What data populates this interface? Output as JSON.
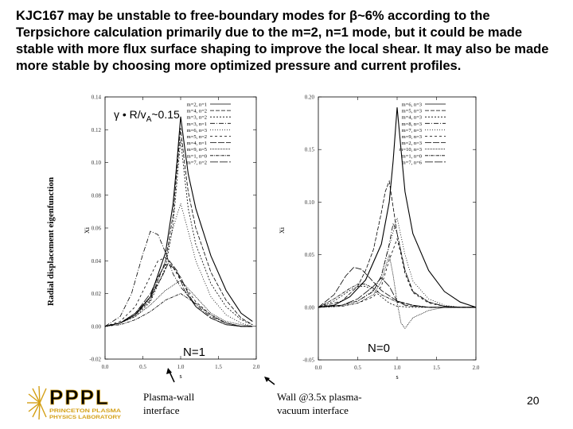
{
  "slide": {
    "title": "KJC167 may be unstable to free-boundary modes for β~6% according to the Terpsichore calculation primarily due to the m=2, n=1 mode, but it could be made stable with more flux surface shaping to improve the local shear. It may also be made more stable by choosing more optimized pressure and current profiles.",
    "ylabel": "Radial displacement eigenfunction",
    "growth_rate_label": "γ • R/vA~0.15",
    "n1_label": "N=1",
    "n0_label": "N=0",
    "plasma_wall_label": "Plasma-wall interface",
    "wall_label": "Wall @3.5x plasma-vacuum interface",
    "page_number": "20",
    "logo_text": "PPPL",
    "logo_subtext": "PRINCETON PLASMA PHYSICS LABORATORY"
  },
  "chart_data": [
    {
      "type": "line",
      "panel": "N=1",
      "xlabel": "s",
      "ylabel": "Xi",
      "xlim": [
        0,
        2
      ],
      "ylim": [
        -0.02,
        0.14
      ],
      "xticks": [
        "0.0",
        "0.5",
        "1.0",
        "1.5",
        "2.0"
      ],
      "yticks": [
        "-0.02",
        "0.00",
        "0.02",
        "0.04",
        "0.06",
        "0.08",
        "0.10",
        "0.12",
        "0.14"
      ],
      "legend": [
        "m=2, n=1",
        "m=4, n=2",
        "m=3, n=2",
        "m=3, n=1",
        "m=6, n=3",
        "m=5, n=2",
        "m=4, n=1",
        "m=9, n=5",
        "m=1, n=0",
        "m=7, n=2"
      ],
      "series": [
        {
          "name": "m=2, n=1",
          "x": [
            0,
            0.2,
            0.4,
            0.6,
            0.8,
            0.9,
            0.95,
            1.0,
            1.05,
            1.1,
            1.2,
            1.4,
            1.6,
            1.8,
            1.95
          ],
          "values": [
            0,
            0.002,
            0.007,
            0.018,
            0.045,
            0.075,
            0.1,
            0.128,
            0.11,
            0.093,
            0.072,
            0.043,
            0.022,
            0.008,
            0.003
          ]
        },
        {
          "name": "m=4, n=2",
          "x": [
            0,
            0.2,
            0.4,
            0.6,
            0.8,
            0.9,
            0.95,
            1.0,
            1.05,
            1.1,
            1.2,
            1.4,
            1.6,
            1.8,
            1.95
          ],
          "values": [
            0,
            0.002,
            0.007,
            0.016,
            0.04,
            0.068,
            0.095,
            0.121,
            0.1,
            0.082,
            0.06,
            0.033,
            0.016,
            0.005,
            0.001
          ]
        },
        {
          "name": "m=3, n=2",
          "x": [
            0,
            0.2,
            0.4,
            0.6,
            0.8,
            0.9,
            0.95,
            1.0,
            1.05,
            1.1,
            1.2,
            1.4,
            1.6,
            1.8,
            1.95
          ],
          "values": [
            0,
            0.002,
            0.006,
            0.015,
            0.036,
            0.062,
            0.088,
            0.114,
            0.092,
            0.072,
            0.05,
            0.026,
            0.012,
            0.004,
            0.001
          ]
        },
        {
          "name": "m=3, n=1",
          "x": [
            0,
            0.2,
            0.35,
            0.5,
            0.6,
            0.7,
            0.8,
            0.9,
            1.0,
            1.2,
            1.4,
            1.6,
            1.8,
            1.95
          ],
          "values": [
            0,
            0.006,
            0.02,
            0.044,
            0.058,
            0.056,
            0.045,
            0.032,
            0.024,
            0.013,
            0.006,
            0.002,
            0,
            0
          ]
        },
        {
          "name": "m=6, n=3",
          "x": [
            0,
            0.2,
            0.4,
            0.6,
            0.8,
            0.9,
            1.0,
            1.1,
            1.2,
            1.4,
            1.6,
            1.8,
            1.95
          ],
          "values": [
            0,
            0.002,
            0.007,
            0.017,
            0.04,
            0.06,
            0.075,
            0.058,
            0.04,
            0.018,
            0.007,
            0.002,
            0
          ]
        },
        {
          "name": "m=5, n=2",
          "x": [
            0,
            0.2,
            0.4,
            0.55,
            0.7,
            0.8,
            0.9,
            1.0,
            1.2,
            1.4,
            1.6,
            1.8,
            1.95
          ],
          "values": [
            0,
            0.003,
            0.012,
            0.026,
            0.04,
            0.042,
            0.036,
            0.028,
            0.015,
            0.007,
            0.002,
            0,
            0
          ]
        },
        {
          "name": "m=4, n=1",
          "x": [
            0,
            0.2,
            0.4,
            0.6,
            0.75,
            0.85,
            0.95,
            1.05,
            1.2,
            1.4,
            1.6,
            1.8,
            1.95
          ],
          "values": [
            0,
            0.002,
            0.008,
            0.018,
            0.03,
            0.04,
            0.034,
            0.022,
            0.012,
            0.005,
            0.001,
            0,
            0
          ]
        },
        {
          "name": "m=9, n=5",
          "x": [
            0,
            0.2,
            0.4,
            0.6,
            0.8,
            1.0,
            1.2,
            1.4,
            1.6,
            1.8,
            1.95
          ],
          "values": [
            0,
            0.002,
            0.006,
            0.013,
            0.022,
            0.028,
            0.018,
            0.008,
            0.003,
            0.001,
            0
          ]
        },
        {
          "name": "m=1, n=0",
          "x": [
            0,
            0.2,
            0.4,
            0.6,
            0.8,
            1.0,
            1.2,
            1.4,
            1.6,
            1.8,
            1.95
          ],
          "values": [
            0,
            0.001,
            0.004,
            0.009,
            0.016,
            0.02,
            0.014,
            0.007,
            0.002,
            0,
            0
          ]
        },
        {
          "name": "m=7, n=2",
          "x": [
            0,
            0.2,
            0.4,
            0.6,
            0.7,
            0.8,
            0.9,
            1.0,
            1.1,
            1.2,
            1.4,
            1.6,
            1.8,
            1.95
          ],
          "values": [
            0,
            0.002,
            0.008,
            0.02,
            0.03,
            0.038,
            0.036,
            0.03,
            0.02,
            0.012,
            0.005,
            0.001,
            0,
            0
          ]
        }
      ]
    },
    {
      "type": "line",
      "panel": "N=0",
      "xlabel": "s",
      "ylabel": "Xi",
      "xlim": [
        0,
        2
      ],
      "ylim": [
        -0.05,
        0.2
      ],
      "xticks": [
        "0.0",
        "0.5",
        "1.0",
        "1.5",
        "2.0"
      ],
      "yticks": [
        "-0.05",
        "0.00",
        "0.05",
        "0.10",
        "0.15",
        "0.20"
      ],
      "legend": [
        "m=6, n=3",
        "m=5, n=3",
        "m=4, n=3",
        "m=8, n=3",
        "m=7, n=3",
        "m=9, n=3",
        "m=2, n=3",
        "m=10, n=3",
        "m=1, n=0",
        "m=7, n=6"
      ],
      "series": [
        {
          "name": "m=6, n=3",
          "x": [
            0,
            0.2,
            0.4,
            0.6,
            0.8,
            0.9,
            0.95,
            1.0,
            1.05,
            1.1,
            1.2,
            1.4,
            1.6,
            1.8,
            2.0
          ],
          "values": [
            0,
            0.002,
            0.01,
            0.026,
            0.06,
            0.1,
            0.14,
            0.19,
            0.15,
            0.11,
            0.07,
            0.035,
            0.015,
            0.005,
            0
          ]
        },
        {
          "name": "m=5, n=3",
          "x": [
            0,
            0.3,
            0.5,
            0.6,
            0.7,
            0.8,
            0.85,
            0.9,
            1.0,
            1.1,
            1.2,
            1.4,
            1.6,
            1.8,
            2.0
          ],
          "values": [
            0,
            0.006,
            0.02,
            0.035,
            0.055,
            0.09,
            0.11,
            0.12,
            0.07,
            0.035,
            0.015,
            0.005,
            0.001,
            0,
            0
          ]
        },
        {
          "name": "m=4, n=3",
          "x": [
            0,
            0.2,
            0.4,
            0.5,
            0.6,
            0.7,
            0.8,
            0.9,
            1.0,
            1.2,
            1.4,
            1.6,
            1.8,
            2.0
          ],
          "values": [
            0,
            0.006,
            0.016,
            0.02,
            0.02,
            0.016,
            0.01,
            0.004,
            0.001,
            0,
            0,
            0,
            0,
            0
          ]
        },
        {
          "name": "m=8, n=3",
          "x": [
            0,
            0.3,
            0.5,
            0.7,
            0.8,
            0.9,
            0.95,
            1.0,
            1.1,
            1.2,
            1.4,
            1.6,
            1.8,
            2.0
          ],
          "values": [
            0,
            0.002,
            0.006,
            0.015,
            0.03,
            0.06,
            0.08,
            0.07,
            0.035,
            0.015,
            0.005,
            0.001,
            0,
            0
          ]
        },
        {
          "name": "m=7, n=3",
          "x": [
            0,
            0.3,
            0.5,
            0.7,
            0.8,
            0.9,
            1.0,
            1.1,
            1.2,
            1.4,
            1.6,
            1.8,
            2.0
          ],
          "values": [
            0,
            0.002,
            0.006,
            0.016,
            0.03,
            0.058,
            0.085,
            0.05,
            0.025,
            0.008,
            0.002,
            0,
            0
          ]
        },
        {
          "name": "m=9, n=3",
          "x": [
            0,
            0.3,
            0.5,
            0.7,
            0.8,
            0.9,
            1.0,
            1.05,
            1.1,
            1.2,
            1.4,
            1.6,
            1.8,
            2.0
          ],
          "values": [
            0,
            0.001,
            0.004,
            0.01,
            0.02,
            0.045,
            0.065,
            0.05,
            0.032,
            0.014,
            0.004,
            0.001,
            0,
            0
          ]
        },
        {
          "name": "m=2, n=3",
          "x": [
            0,
            0.2,
            0.35,
            0.45,
            0.55,
            0.65,
            0.8,
            1.0,
            1.2,
            1.4,
            1.6,
            1.8,
            2.0
          ],
          "values": [
            0,
            0.012,
            0.03,
            0.038,
            0.036,
            0.028,
            0.016,
            0.006,
            0.002,
            0,
            0,
            0,
            0
          ]
        },
        {
          "name": "m=10, n=3",
          "x": [
            0,
            0.3,
            0.5,
            0.7,
            0.8,
            0.9,
            0.95,
            1.0,
            1.05,
            1.1,
            1.2,
            1.4,
            1.6,
            1.8,
            2.0
          ],
          "values": [
            0,
            0.001,
            0.004,
            0.012,
            0.025,
            0.05,
            0.03,
            0.005,
            -0.015,
            -0.02,
            -0.01,
            -0.003,
            0,
            0,
            0
          ]
        },
        {
          "name": "m=1, n=0",
          "x": [
            0,
            0.2,
            0.4,
            0.5,
            0.6,
            0.7,
            0.8,
            1.0,
            1.2,
            1.4,
            1.6,
            1.8,
            2.0
          ],
          "values": [
            0,
            0.008,
            0.018,
            0.022,
            0.022,
            0.018,
            0.012,
            0.005,
            0.002,
            0,
            0,
            0,
            0
          ]
        },
        {
          "name": "m=7, n=6",
          "x": [
            0,
            0.3,
            0.5,
            0.7,
            0.8,
            0.9,
            1.0,
            1.1,
            1.2,
            1.4,
            1.6,
            1.8,
            2.0
          ],
          "values": [
            0,
            0.002,
            0.008,
            0.02,
            0.028,
            0.02,
            0.006,
            0.002,
            0.001,
            0,
            0,
            0,
            0
          ]
        }
      ]
    }
  ]
}
